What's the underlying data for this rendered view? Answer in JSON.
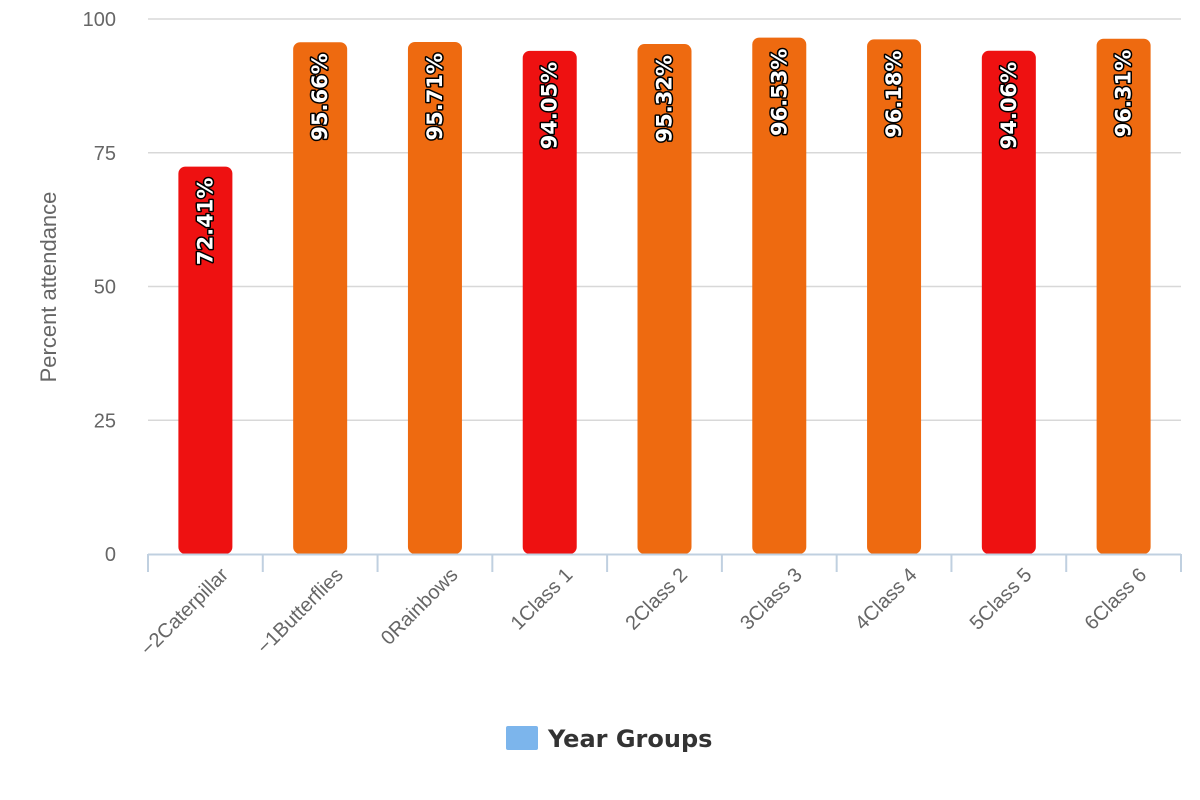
{
  "chart_data": {
    "type": "bar",
    "title": "",
    "xlabel": "",
    "ylabel": "Percent attendance",
    "ylim": [
      0,
      100
    ],
    "yticks": [
      0,
      25,
      50,
      75,
      100
    ],
    "grid": true,
    "legend_position": "bottom-center",
    "categories": [
      "−2Caterpillar",
      "−1Butterflies",
      "0Rainbows",
      "1Class 1",
      "2Class 2",
      "3Class 3",
      "4Class 4",
      "5Class 5",
      "6Class 6"
    ],
    "series": [
      {
        "name": "Year Groups",
        "values": [
          72.41,
          95.66,
          95.71,
          94.05,
          95.32,
          96.53,
          96.18,
          94.06,
          96.31
        ],
        "labels": [
          "72.41%",
          "95.66%",
          "95.71%",
          "94.05%",
          "95.32%",
          "96.53%",
          "96.18%",
          "94.06%",
          "96.31%"
        ],
        "colors": [
          "#ee1111",
          "#ee6a10",
          "#ee6a10",
          "#ee1111",
          "#ee6a10",
          "#ee6a10",
          "#ee6a10",
          "#ee1111",
          "#ee6a10"
        ],
        "legend_color": "#7cb5ec"
      }
    ]
  }
}
